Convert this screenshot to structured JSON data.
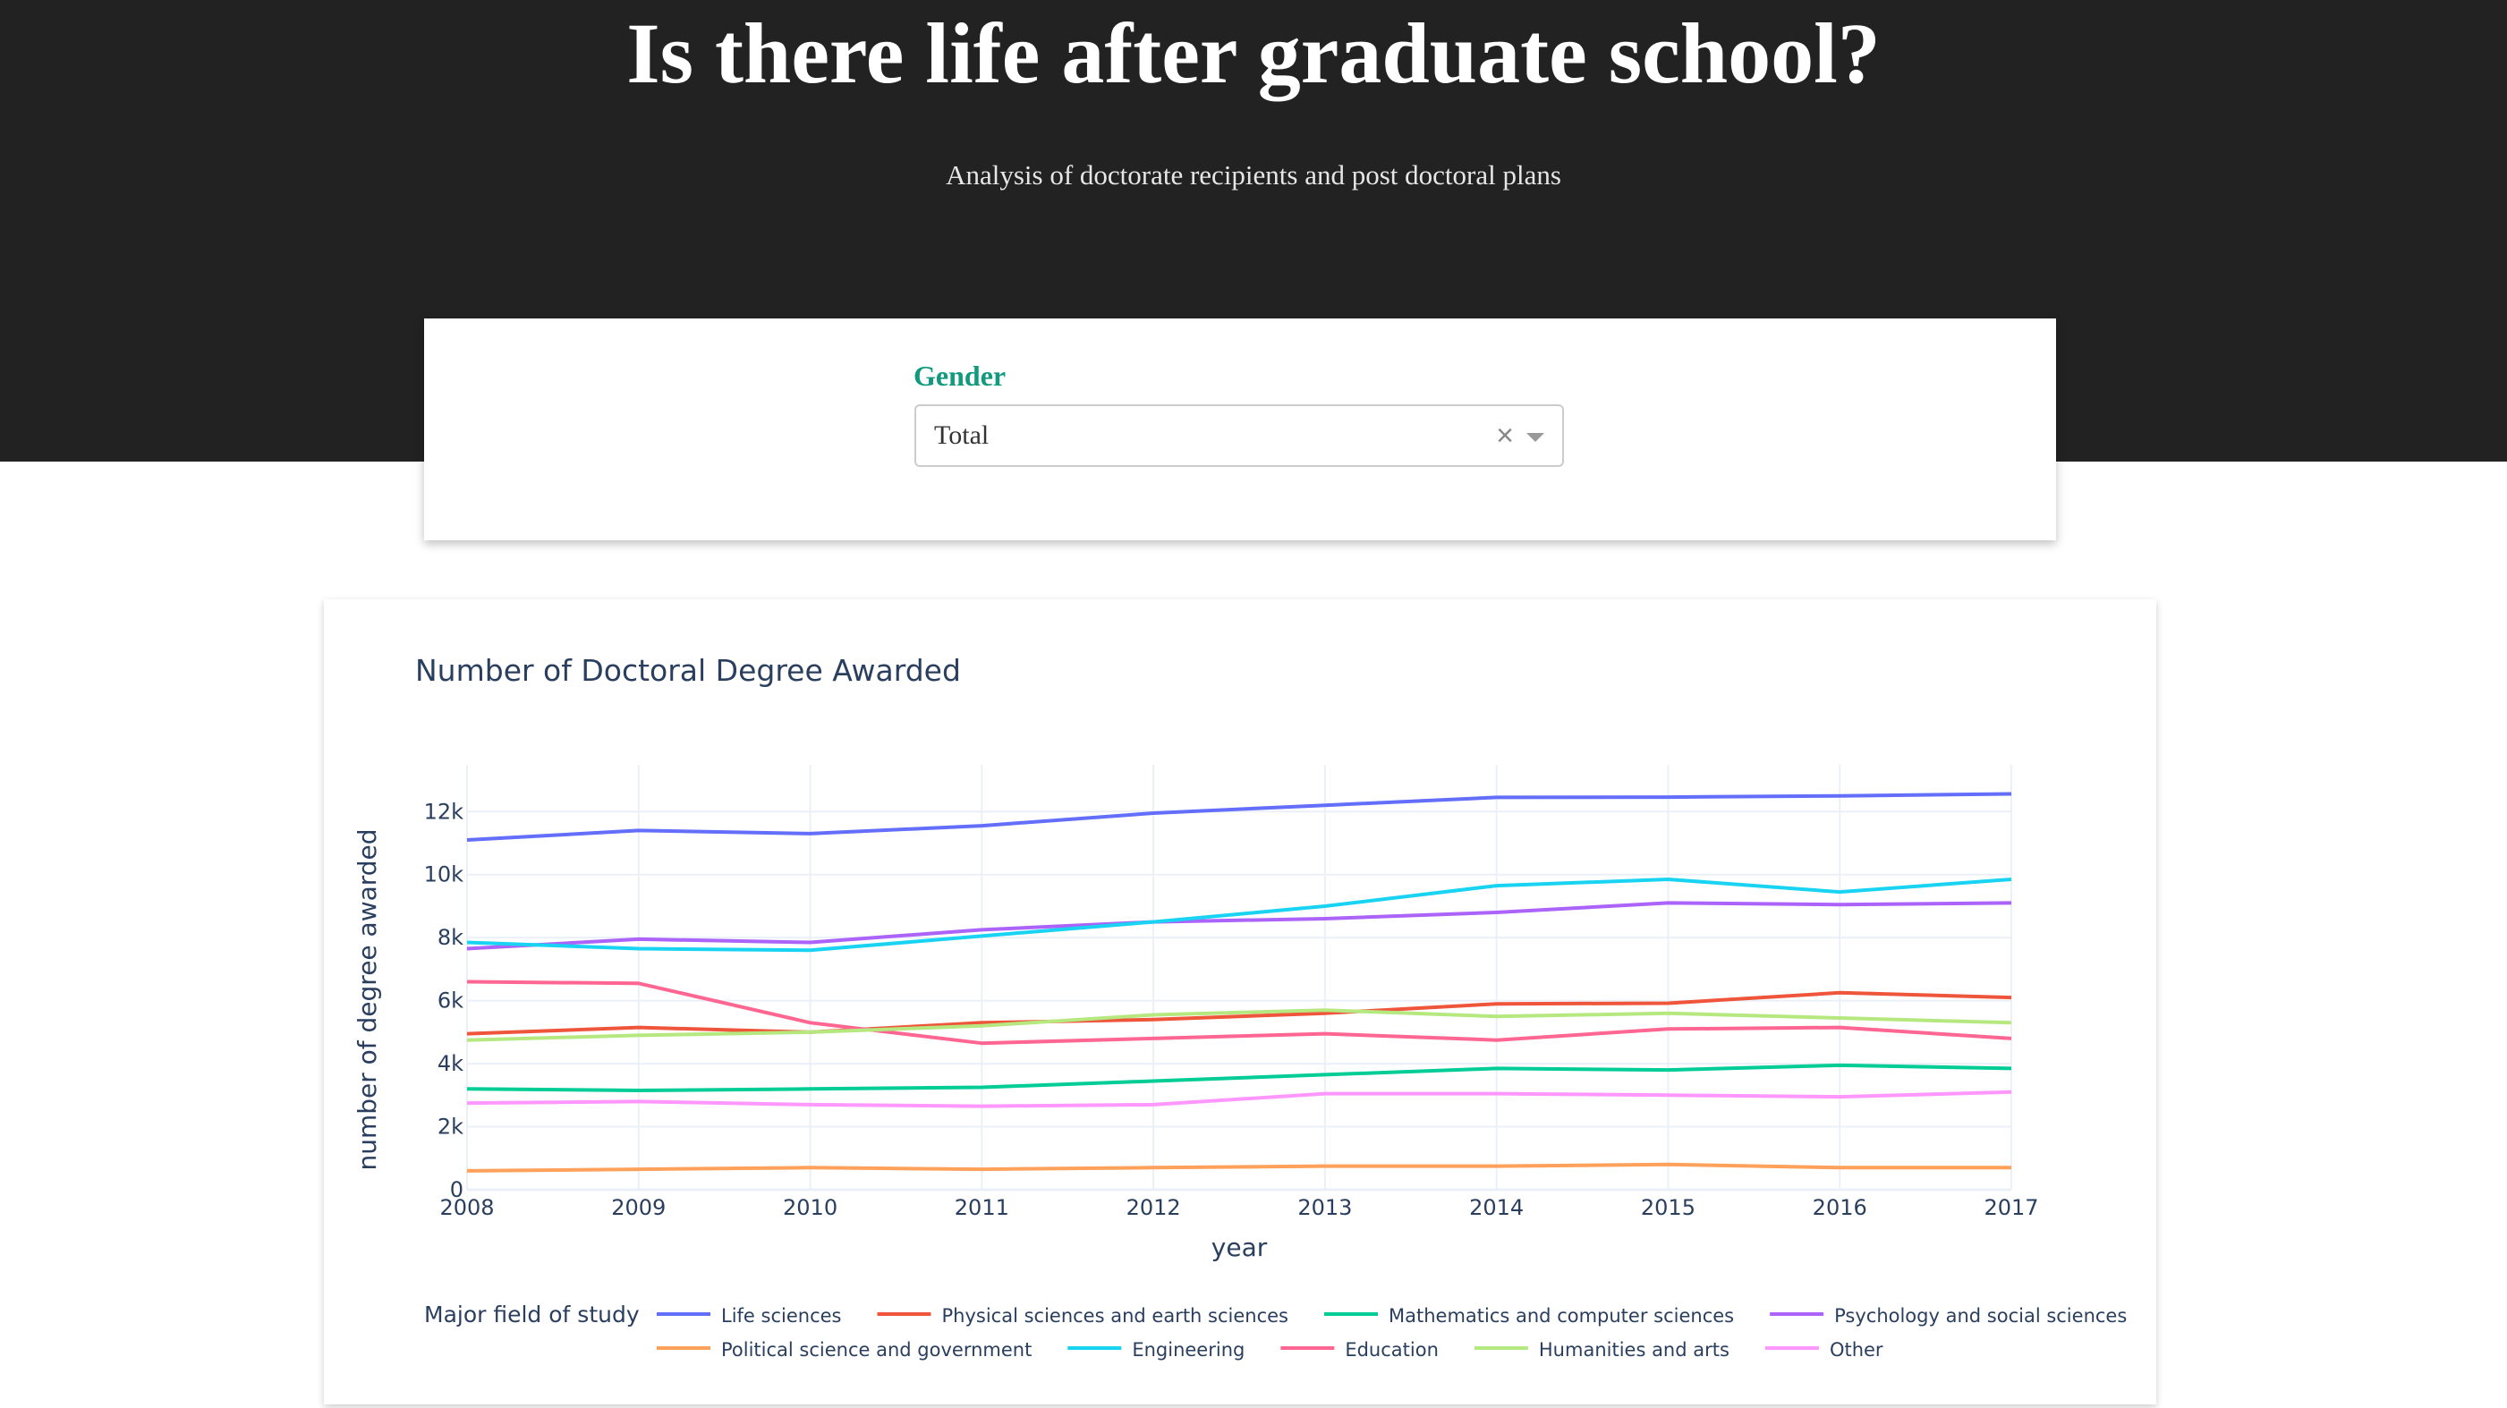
{
  "header": {
    "title": "Is there life after graduate school?",
    "subtitle": "Analysis of doctorate recipients and post doctoral plans"
  },
  "filter": {
    "label": "Gender",
    "selected": "Total",
    "clear_glyph": "×"
  },
  "chart_data": {
    "type": "line",
    "title": "Number of Doctoral Degree Awarded",
    "xlabel": "year",
    "ylabel": "number of degree awarded",
    "x": [
      2008,
      2009,
      2010,
      2011,
      2012,
      2013,
      2014,
      2015,
      2016,
      2017
    ],
    "xlim": [
      2008,
      2017
    ],
    "ylim": [
      0,
      13200
    ],
    "yticks": [
      0,
      2000,
      4000,
      6000,
      8000,
      10000,
      12000
    ],
    "ytick_labels": [
      "0",
      "2k",
      "4k",
      "6k",
      "8k",
      "10k",
      "12k"
    ],
    "grid": true,
    "legend": {
      "title": "Major field of study",
      "placement": "bottom"
    },
    "series": [
      {
        "name": "Life sciences",
        "color": "#636efa",
        "values": [
          11100,
          11400,
          11300,
          11550,
          11950,
          12200,
          12450,
          12460,
          12500,
          12560
        ]
      },
      {
        "name": "Physical sciences and earth sciences",
        "color": "#ef553b",
        "values": [
          4950,
          5150,
          5000,
          5300,
          5400,
          5600,
          5900,
          5920,
          6250,
          6100
        ]
      },
      {
        "name": "Mathematics and computer sciences",
        "color": "#00cc96",
        "values": [
          3200,
          3150,
          3200,
          3250,
          3450,
          3650,
          3850,
          3800,
          3950,
          3850
        ]
      },
      {
        "name": "Psychology and social sciences",
        "color": "#ab63fa",
        "values": [
          7650,
          7950,
          7850,
          8250,
          8500,
          8600,
          8800,
          9100,
          9050,
          9100
        ]
      },
      {
        "name": "Political science and government",
        "color": "#ffa15a",
        "values": [
          600,
          650,
          700,
          650,
          700,
          750,
          750,
          800,
          700,
          700
        ]
      },
      {
        "name": "Engineering",
        "color": "#19d3f3",
        "values": [
          7850,
          7650,
          7600,
          8050,
          8500,
          9000,
          9650,
          9850,
          9450,
          9850
        ]
      },
      {
        "name": "Education",
        "color": "#ff6692",
        "values": [
          6600,
          6550,
          5300,
          4650,
          4800,
          4950,
          4750,
          5100,
          5150,
          4800
        ]
      },
      {
        "name": "Humanities and arts",
        "color": "#b6e880",
        "values": [
          4750,
          4900,
          5000,
          5200,
          5550,
          5700,
          5500,
          5600,
          5450,
          5300
        ]
      },
      {
        "name": "Other",
        "color": "#ff97ff",
        "values": [
          2750,
          2800,
          2700,
          2650,
          2700,
          3050,
          3050,
          3000,
          2950,
          3100
        ]
      }
    ]
  }
}
